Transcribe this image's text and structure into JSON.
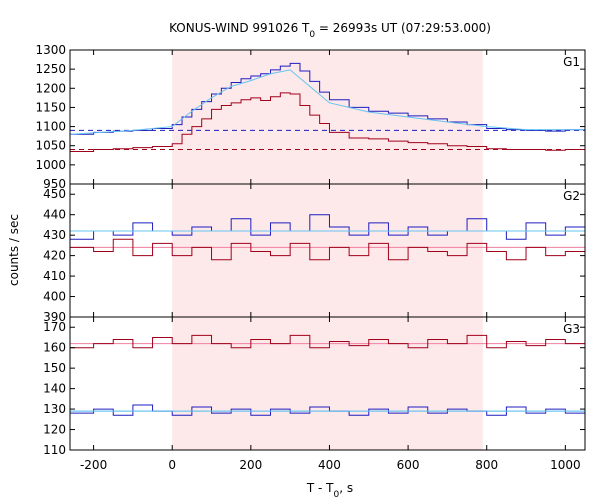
{
  "chart_data": {
    "type": "line",
    "title_main": "KONUS-WIND 991026 T",
    "title_sub": "0",
    "title_rest": " = 26993s UT (07:29:53.000)",
    "xlabel_main": "T - T",
    "xlabel_sub": "0",
    "xlabel_rest": ", s",
    "ylabel": "counts / sec",
    "xlim": [
      -260,
      1050
    ],
    "xticks": [
      -200,
      0,
      200,
      400,
      600,
      800,
      1000
    ],
    "highlight_interval": [
      0,
      790
    ],
    "colors": {
      "red_series": "#a0001a",
      "blue_series": "#1d1dc0",
      "model_line": "#66c4f0",
      "highlight": "#fde8ea",
      "pink_line": "#f080a0"
    },
    "panels": [
      {
        "label": "G1",
        "ylim": [
          950,
          1300
        ],
        "yticks": [
          950,
          1000,
          1050,
          1100,
          1150,
          1200,
          1250,
          1300
        ],
        "background_levels": {
          "blue": 1090,
          "red": 1040
        },
        "series": [
          {
            "color": "blue",
            "x": [
              -260,
              -200,
              -150,
              -100,
              -50,
              0,
              25,
              50,
              75,
              100,
              125,
              150,
              175,
              200,
              225,
              250,
              275,
              300,
              325,
              350,
              375,
              400,
              450,
              500,
              550,
              600,
              650,
              700,
              750,
              800,
              850,
              900,
              950,
              1000,
              1050
            ],
            "y": [
              1080,
              1085,
              1088,
              1090,
              1095,
              1105,
              1125,
              1145,
              1165,
              1185,
              1200,
              1215,
              1225,
              1232,
              1238,
              1248,
              1258,
              1265,
              1245,
              1218,
              1190,
              1170,
              1150,
              1140,
              1135,
              1128,
              1120,
              1112,
              1105,
              1095,
              1092,
              1090,
              1088,
              1092,
              1095
            ]
          },
          {
            "color": "red",
            "x": [
              -260,
              -200,
              -150,
              -100,
              -50,
              0,
              25,
              50,
              75,
              100,
              125,
              150,
              175,
              200,
              225,
              250,
              275,
              300,
              325,
              350,
              375,
              400,
              450,
              500,
              550,
              600,
              650,
              700,
              750,
              800,
              850,
              900,
              950,
              1000,
              1050
            ],
            "y": [
              1035,
              1040,
              1042,
              1045,
              1048,
              1055,
              1080,
              1100,
              1120,
              1145,
              1155,
              1162,
              1170,
              1175,
              1168,
              1178,
              1188,
              1185,
              1155,
              1130,
              1108,
              1085,
              1070,
              1068,
              1062,
              1058,
              1055,
              1050,
              1048,
              1042,
              1040,
              1040,
              1038,
              1040,
              1036
            ]
          },
          {
            "color": "model",
            "x": [
              -260,
              -100,
              0,
              50,
              100,
              150,
              200,
              250,
              300,
              350,
              400,
              500,
              600,
              700,
              800,
              900,
              1050
            ],
            "y": [
              1080,
              1090,
              1100,
              1140,
              1175,
              1205,
              1220,
              1238,
              1248,
              1205,
              1162,
              1138,
              1125,
              1112,
              1100,
              1092,
              1092
            ]
          }
        ]
      },
      {
        "label": "G2",
        "ylim": [
          390,
          455
        ],
        "yticks": [
          390,
          400,
          410,
          420,
          430,
          440,
          450
        ],
        "background_levels": {
          "blue": 432,
          "red": 424
        },
        "series": [
          {
            "color": "blue",
            "x": [
              -260,
              -200,
              -150,
              -100,
              -50,
              0,
              50,
              100,
              150,
              200,
              250,
              300,
              350,
              400,
              450,
              500,
              550,
              600,
              650,
              700,
              750,
              800,
              850,
              900,
              950,
              1000,
              1050
            ],
            "y": [
              428,
              432,
              430,
              436,
              432,
              430,
              434,
              432,
              438,
              430,
              436,
              432,
              440,
              434,
              430,
              436,
              430,
              434,
              430,
              432,
              438,
              432,
              428,
              436,
              430,
              434,
              432
            ]
          },
          {
            "color": "red",
            "x": [
              -260,
              -200,
              -150,
              -100,
              -50,
              0,
              50,
              100,
              150,
              200,
              250,
              300,
              350,
              400,
              450,
              500,
              550,
              600,
              650,
              700,
              750,
              800,
              850,
              900,
              950,
              1000,
              1050
            ],
            "y": [
              424,
              422,
              428,
              420,
              426,
              420,
              424,
              418,
              426,
              422,
              420,
              426,
              418,
              424,
              420,
              426,
              418,
              424,
              422,
              420,
              426,
              422,
              418,
              424,
              420,
              422,
              424
            ]
          },
          {
            "color": "model",
            "x": [
              -260,
              1050
            ],
            "y": [
              432,
              432
            ]
          }
        ]
      },
      {
        "label": "G3",
        "ylim": [
          110,
          175
        ],
        "yticks": [
          110,
          120,
          130,
          140,
          150,
          160,
          170
        ],
        "background_levels": {
          "blue": 129,
          "red": 162
        },
        "series": [
          {
            "color": "red",
            "x": [
              -260,
              -200,
              -150,
              -100,
              -50,
              0,
              50,
              100,
              150,
              200,
              250,
              300,
              350,
              400,
              450,
              500,
              550,
              600,
              650,
              700,
              750,
              800,
              850,
              900,
              950,
              1000,
              1050
            ],
            "y": [
              160,
              162,
              164,
              160,
              165,
              162,
              166,
              162,
              160,
              164,
              162,
              166,
              160,
              163,
              161,
              164,
              162,
              160,
              164,
              162,
              166,
              160,
              163,
              161,
              164,
              162,
              160
            ]
          },
          {
            "color": "blue",
            "x": [
              -260,
              -200,
              -150,
              -100,
              -50,
              0,
              50,
              100,
              150,
              200,
              250,
              300,
              350,
              400,
              450,
              500,
              550,
              600,
              650,
              700,
              750,
              800,
              850,
              900,
              950,
              1000,
              1050
            ],
            "y": [
              128,
              130,
              127,
              132,
              129,
              127,
              131,
              128,
              130,
              127,
              130,
              128,
              131,
              129,
              127,
              130,
              128,
              131,
              128,
              130,
              129,
              127,
              131,
              128,
              130,
              128,
              129
            ]
          },
          {
            "color": "model",
            "x": [
              -260,
              1050
            ],
            "y": [
              129,
              129
            ]
          }
        ]
      }
    ]
  }
}
